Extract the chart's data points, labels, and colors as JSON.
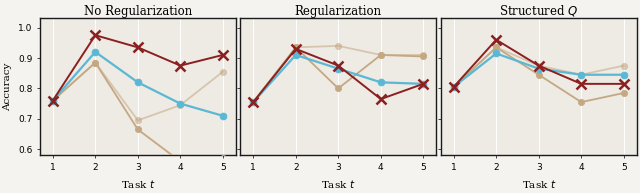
{
  "titles": [
    "No Regularization",
    "Regularization",
    "Structured $Q$"
  ],
  "xlabel": "Task $t$",
  "ylabel": "Accuracy",
  "xticks": [
    1,
    2,
    3,
    4,
    5
  ],
  "ylim": [
    0.58,
    1.03
  ],
  "yticks": [
    0.6,
    0.7,
    0.8,
    0.9,
    1.0
  ],
  "panels": [
    {
      "lines": [
        {
          "y": [
            0.76,
            0.92,
            0.82,
            0.75,
            0.71
          ],
          "color": "#5BB8D4",
          "marker": "o",
          "lw": 1.6,
          "ms": 5.0,
          "alpha": 1.0,
          "zorder": 4
        },
        {
          "y": [
            0.76,
            0.975,
            0.935,
            0.875,
            0.91
          ],
          "color": "#8B2020",
          "marker": "x",
          "lw": 1.4,
          "ms": 6.5,
          "mew": 1.8,
          "alpha": 1.0,
          "zorder": 4
        },
        {
          "y": [
            0.76,
            0.885,
            0.665,
            0.56,
            0.57
          ],
          "color": "#C4A882",
          "marker": "o",
          "lw": 1.3,
          "ms": 4.5,
          "alpha": 1.0,
          "zorder": 3
        },
        {
          "y": [
            0.76,
            0.885,
            0.695,
            0.745,
            0.855
          ],
          "color": "#C4A882",
          "marker": "o",
          "lw": 1.3,
          "ms": 4.5,
          "alpha": 0.55,
          "zorder": 3
        }
      ]
    },
    {
      "lines": [
        {
          "y": [
            0.755,
            0.91,
            0.865,
            0.82,
            0.815
          ],
          "color": "#5BB8D4",
          "marker": "o",
          "lw": 1.6,
          "ms": 5.0,
          "alpha": 1.0,
          "zorder": 4
        },
        {
          "y": [
            0.755,
            0.93,
            0.875,
            0.765,
            0.815
          ],
          "color": "#8B2020",
          "marker": "x",
          "lw": 1.4,
          "ms": 6.5,
          "mew": 1.8,
          "alpha": 1.0,
          "zorder": 4
        },
        {
          "y": [
            0.755,
            0.935,
            0.8,
            0.91,
            0.905
          ],
          "color": "#C4A882",
          "marker": "o",
          "lw": 1.3,
          "ms": 4.5,
          "alpha": 1.0,
          "zorder": 3
        },
        {
          "y": [
            0.755,
            0.935,
            0.94,
            0.91,
            0.91
          ],
          "color": "#C4A882",
          "marker": "o",
          "lw": 1.3,
          "ms": 4.5,
          "alpha": 0.55,
          "zorder": 3
        }
      ]
    },
    {
      "lines": [
        {
          "y": [
            0.805,
            0.915,
            0.865,
            0.845,
            0.845
          ],
          "color": "#5BB8D4",
          "marker": "o",
          "lw": 1.6,
          "ms": 5.0,
          "alpha": 1.0,
          "zorder": 4
        },
        {
          "y": [
            0.805,
            0.96,
            0.875,
            0.815,
            0.815
          ],
          "color": "#8B2020",
          "marker": "x",
          "lw": 1.4,
          "ms": 6.5,
          "mew": 1.8,
          "alpha": 1.0,
          "zorder": 4
        },
        {
          "y": [
            0.805,
            0.935,
            0.845,
            0.755,
            0.785
          ],
          "color": "#C4A882",
          "marker": "o",
          "lw": 1.3,
          "ms": 4.5,
          "alpha": 1.0,
          "zorder": 3
        },
        {
          "y": [
            0.805,
            0.935,
            0.875,
            0.845,
            0.875
          ],
          "color": "#C4A882",
          "marker": "o",
          "lw": 1.3,
          "ms": 4.5,
          "alpha": 0.55,
          "zorder": 3
        }
      ]
    }
  ],
  "bg_color": "#EEEAE4",
  "fig_color": "#F5F3EF",
  "grid_color": "#FFFFFF",
  "tick_fontsize": 6.5,
  "label_fontsize": 7.5,
  "title_fontsize": 8.5
}
